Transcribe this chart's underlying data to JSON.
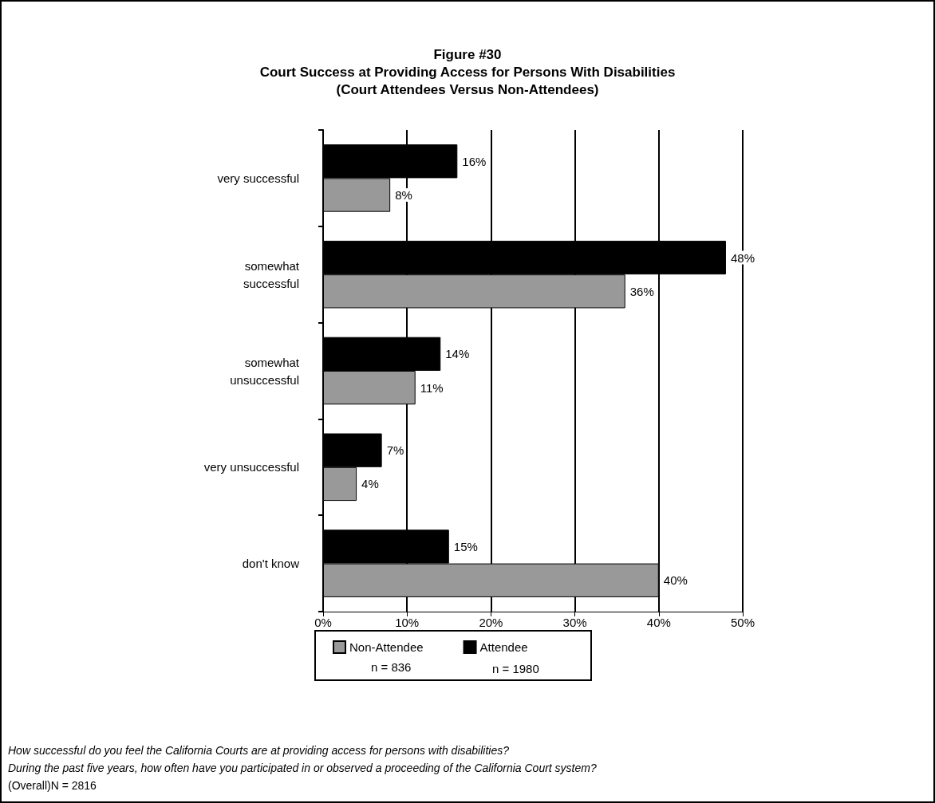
{
  "chart_data": {
    "type": "bar",
    "orientation": "horizontal",
    "title": "Figure #30\nCourt Success at Providing Access for Persons With Disabilities\n(Court Attendees Versus Non-Attendees)",
    "categories": [
      "very successful",
      "somewhat\nsuccessful",
      "somewhat\nunsuccessful",
      "very unsuccessful",
      "don't know"
    ],
    "series": [
      {
        "name": "Attendee",
        "color": "#000000",
        "values": [
          16,
          48,
          14,
          7,
          15
        ],
        "value_labels": [
          "16%",
          "48%",
          "14%",
          "7%",
          "15%"
        ]
      },
      {
        "name": "Non-Attendee",
        "color": "#999999",
        "values": [
          8,
          36,
          11,
          4,
          40
        ],
        "value_labels": [
          "8%",
          "36%",
          "11%",
          "4%",
          "40%"
        ]
      }
    ],
    "xlim": [
      0,
      50
    ],
    "xticks": [
      {
        "value": 0,
        "label": "0%"
      },
      {
        "value": 10,
        "label": "10%"
      },
      {
        "value": 20,
        "label": "20%"
      },
      {
        "value": 30,
        "label": "30%"
      },
      {
        "value": 40,
        "label": "40%"
      },
      {
        "value": 50,
        "label": "50%"
      }
    ],
    "grid": "x",
    "legend": "bottom",
    "annotations": [
      "n = 1980",
      "n = 836",
      "How successful do you feel the California Courts are at providing access for persons with disabilities?",
      "During the past five years, how often have you participated in or observed a proceeding of the California Court system?",
      "(Overall)N = 2816"
    ]
  }
}
